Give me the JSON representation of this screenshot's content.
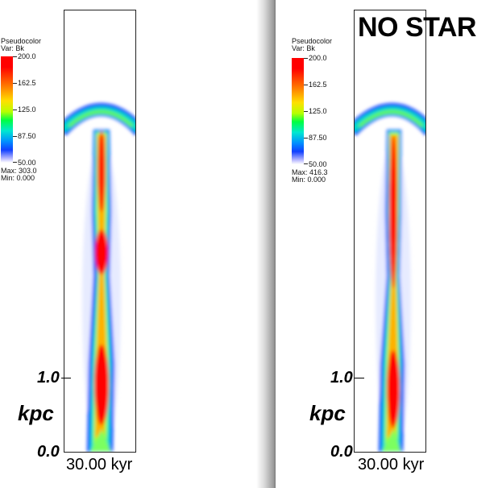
{
  "legend_left": {
    "title": "Pseudocolor",
    "var": "Var: Bk",
    "ticks": [
      "200.0",
      "162.5",
      "125.0",
      "87.50",
      "50.00"
    ],
    "max": "Max:  303.0",
    "min": "Min:  0.000"
  },
  "legend_right": {
    "title": "Pseudocolor",
    "var": "Var: Bk",
    "ticks": [
      "200.0",
      "162.5",
      "125.0",
      "87.50",
      "50.00"
    ],
    "max": "Max:  416.3",
    "min": "Min:  0.000"
  },
  "axis": {
    "scale_value": "1.0",
    "unit": "kpc",
    "origin": "0.0"
  },
  "time_left": "30.00 kyr",
  "time_right": "30.00 kyr",
  "right_title": "NO STAR"
}
